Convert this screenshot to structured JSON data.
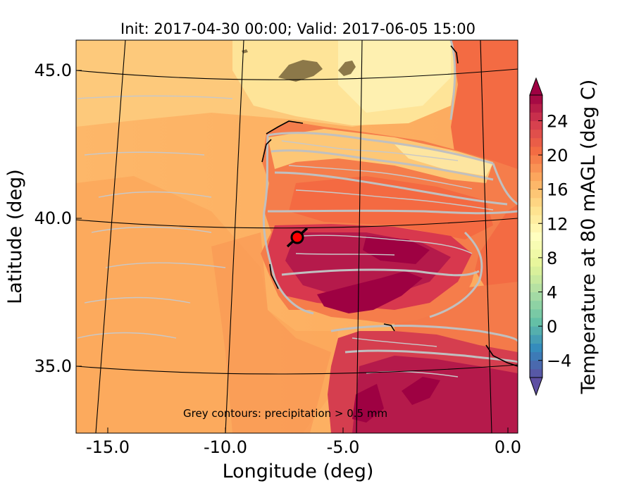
{
  "title": "Init: 2017-04-30 00:00; Valid: 2017-06-05 15:00",
  "xlabel": "Longitude (deg)",
  "ylabel": "Latitude (deg)",
  "colorbar_label": "Temperature at 80 mAGL (deg C)",
  "annotation": "Grey contours: precipitation > 0.5 mm",
  "chart_data": {
    "type": "heatmap",
    "variable": "Temperature at 80 mAGL",
    "units": "deg C",
    "xlim": [
      -16,
      0.2
    ],
    "ylim": [
      32.8,
      46.1
    ],
    "x_ticks": [
      -15,
      -10,
      -5,
      0
    ],
    "x_tick_labels": [
      "-15.0",
      "-10.0",
      "-5.0",
      "0.0"
    ],
    "y_ticks": [
      35,
      40,
      45
    ],
    "y_tick_labels": [
      "35.0",
      "40.0",
      "45.0"
    ],
    "colorbar": {
      "range": [
        -6,
        27
      ],
      "ticks": [
        -4,
        0,
        4,
        8,
        12,
        16,
        20,
        24
      ],
      "tick_labels": [
        "−4",
        "0",
        "4",
        "8",
        "12",
        "16",
        "20",
        "24"
      ],
      "extend": "both",
      "colormap": "Spectral_r",
      "colors": [
        "#5e4fa2",
        "#3288bd",
        "#66c2a5",
        "#abdda4",
        "#e6f598",
        "#ffffbf",
        "#fee08b",
        "#fdae61",
        "#f46d43",
        "#d53e4f",
        "#9e0142"
      ]
    },
    "marker": {
      "lon": -7.6,
      "lat": 39.4,
      "color": "#ff0000"
    },
    "precip_contour_color": "#c0c0c0",
    "grid": true
  }
}
